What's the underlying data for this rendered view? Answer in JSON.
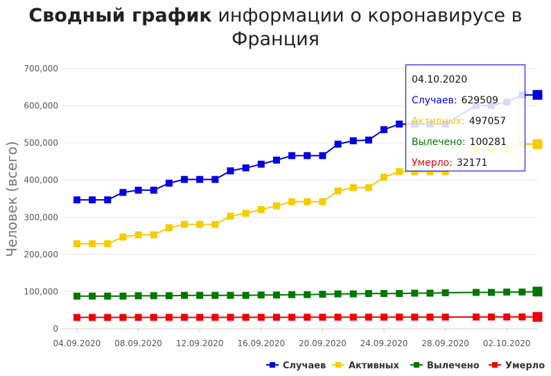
{
  "page": {
    "title_bold": "Сводный график",
    "title_rest": " информации о коронавирусе в Франция"
  },
  "tooltip": {
    "date": "04.10.2020",
    "rows": [
      {
        "label": "Случаев:",
        "value": "629509",
        "color": "#0000dd"
      },
      {
        "label": "Активных:",
        "value": "497057",
        "color": "#f5cc00"
      },
      {
        "label": "Вылечено:",
        "value": "100281",
        "color": "#007700"
      },
      {
        "label": "Умерло:",
        "value": "32171",
        "color": "#ee0000"
      }
    ]
  },
  "chart_data": {
    "type": "line",
    "ylabel": "Человек (всего)",
    "ylim": [
      0,
      700000
    ],
    "y_ticks": [
      0,
      100000,
      200000,
      300000,
      400000,
      500000,
      600000,
      700000
    ],
    "y_tick_labels": [
      "0",
      "100,000",
      "200,000",
      "300,000",
      "400,000",
      "500,000",
      "600,000",
      "700,000"
    ],
    "x_tick_labels": [
      "04.09.2020",
      "08.09.2020",
      "12.09.2020",
      "16.09.2020",
      "20.09.2020",
      "24.09.2020",
      "28.09.2020",
      "02.10.2020"
    ],
    "x": [
      "04.09.2020",
      "05.09.2020",
      "06.09.2020",
      "07.09.2020",
      "08.09.2020",
      "09.09.2020",
      "10.09.2020",
      "11.09.2020",
      "12.09.2020",
      "13.09.2020",
      "14.09.2020",
      "15.09.2020",
      "16.09.2020",
      "17.09.2020",
      "18.09.2020",
      "19.09.2020",
      "20.09.2020",
      "21.09.2020",
      "22.09.2020",
      "23.09.2020",
      "24.09.2020",
      "25.09.2020",
      "26.09.2020",
      "27.09.2020",
      "28.09.2020",
      "30.09.2020",
      "01.10.2020",
      "02.10.2020",
      "03.10.2020",
      "04.10.2020"
    ],
    "legend_position": "bottom-right",
    "grid": true,
    "series": [
      {
        "name": "Случаев",
        "color": "#0000dd",
        "values": [
          347000,
          347000,
          347000,
          367000,
          373000,
          373000,
          392000,
          402000,
          402000,
          402000,
          425000,
          433000,
          443000,
          454000,
          466000,
          466000,
          466000,
          497000,
          506000,
          508000,
          536000,
          551000,
          551000,
          551000,
          551000,
          601000,
          601000,
          610000,
          629000,
          629509
        ]
      },
      {
        "name": "Активных",
        "color": "#f5cc00",
        "values": [
          229000,
          229000,
          229000,
          247000,
          253000,
          253000,
          272000,
          281000,
          281000,
          281000,
          303000,
          311000,
          321000,
          331000,
          342000,
          342000,
          342000,
          371000,
          380000,
          380000,
          408000,
          423000,
          423000,
          423000,
          423000,
          483000,
          483000,
          483000,
          497000,
          497057
        ]
      },
      {
        "name": "Вылечено",
        "color": "#007700",
        "values": [
          88000,
          88000,
          88000,
          88000,
          89000,
          89000,
          89000,
          90000,
          90000,
          90000,
          90000,
          90000,
          91000,
          91000,
          92000,
          92000,
          93000,
          94000,
          94000,
          95000,
          95000,
          95000,
          96000,
          96000,
          97000,
          98000,
          98000,
          99000,
          99000,
          100281
        ]
      },
      {
        "name": "Умерло",
        "color": "#ee0000",
        "values": [
          30700,
          30700,
          30700,
          30700,
          30800,
          30800,
          30800,
          30900,
          30900,
          30900,
          31000,
          31000,
          31000,
          31100,
          31100,
          31200,
          31200,
          31300,
          31300,
          31400,
          31400,
          31500,
          31500,
          31500,
          31600,
          31800,
          31900,
          32000,
          32100,
          32171
        ]
      }
    ]
  }
}
